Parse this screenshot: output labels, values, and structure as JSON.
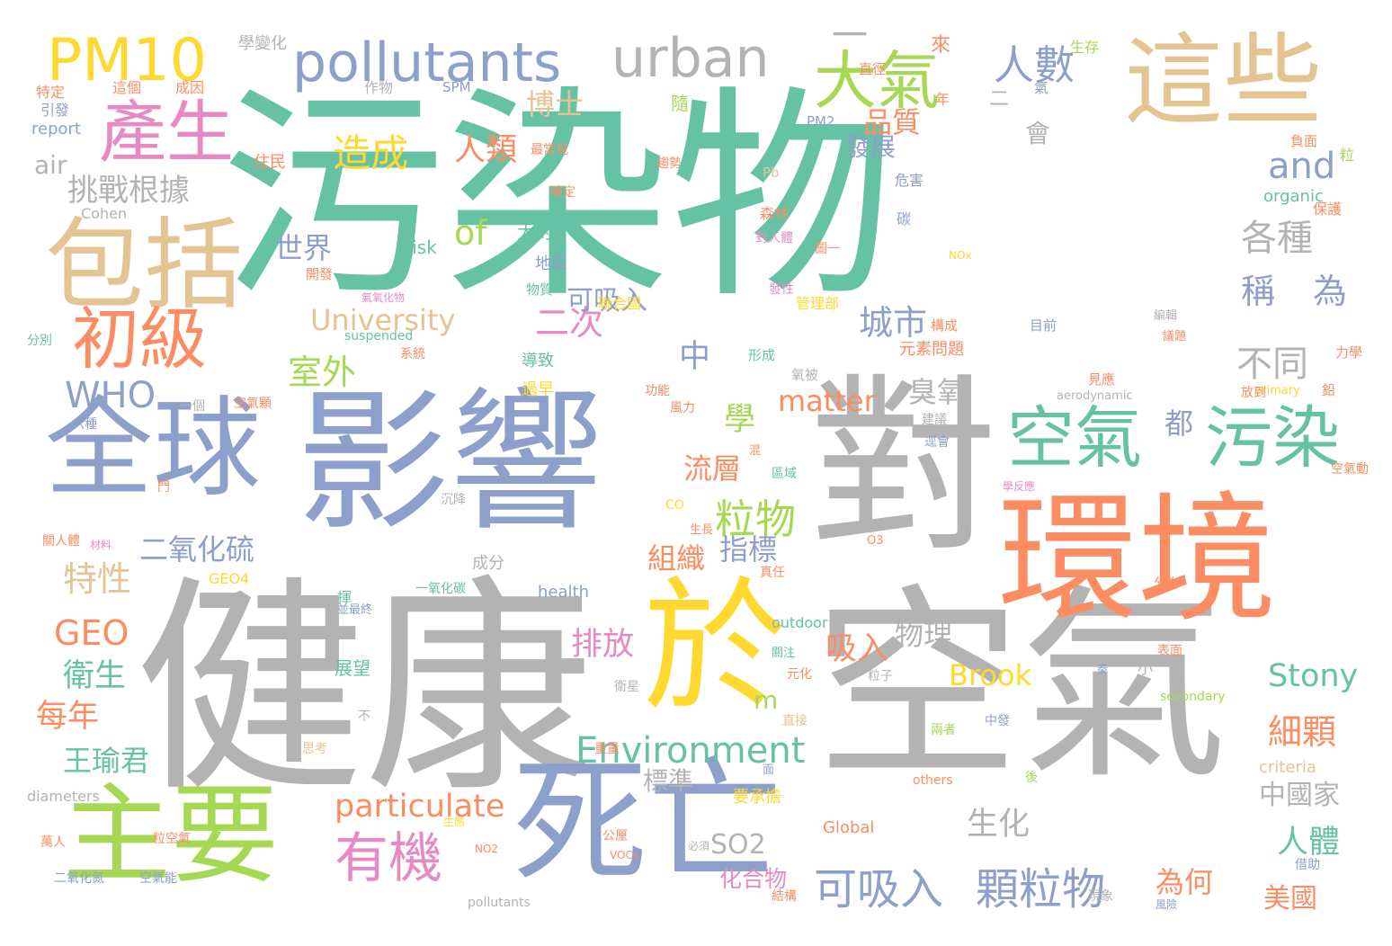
{
  "palette": {
    "teal": "#66c2a5",
    "orange": "#fc8d62",
    "blue": "#8da0cb",
    "pink": "#e78ac3",
    "green": "#a6d854",
    "yellow": "#ffd92f",
    "tan": "#e5c494",
    "gray": "#b3b3b3"
  },
  "words": [
    "污染物",
    "健康",
    "空氣",
    "影響",
    "對",
    "環境",
    "全球",
    "於",
    "主要",
    "死亡",
    "這些",
    "包括",
    "PM10",
    "pollutants",
    "urban",
    "大氣",
    "產生",
    "初級",
    "人數",
    "空氣",
    "污染",
    "WHO",
    "有機",
    "粒物",
    "可吸入",
    "顆粒物",
    "particulate",
    "Environment",
    "二氧化硫",
    "室外",
    "城市",
    "各種",
    "稱",
    "為",
    "不同",
    "中",
    "造成",
    "人類",
    "博士",
    "品質",
    "and",
    "of",
    "世界",
    "University",
    "二次",
    "挑戰根據",
    "air",
    "特性",
    "GEO",
    "衛生",
    "每年",
    "王瑜君",
    "排放",
    "吸入",
    "物理",
    "Brook",
    "Stony",
    "細顆",
    "matter",
    "臭氧",
    "學",
    "都",
    "流層",
    "指標",
    "組織",
    "標準",
    "中國家",
    "生化",
    "SO2",
    "人體",
    "為何",
    "美國",
    "可吸入",
    "化合物",
    "m",
    "一",
    "會",
    "發展",
    "二",
    "來",
    "生存",
    "學變化",
    "特定",
    "引發",
    "report",
    "Cohen",
    "這個",
    "成因",
    "作物",
    "SPM",
    "PM2",
    "氣",
    "負面",
    "粒",
    "organic",
    "保護",
    "危害",
    "碳",
    "Pb",
    "risk",
    "NOx",
    "大約",
    "地區",
    "開發",
    "物質",
    "聯合國",
    "管理部",
    "森林",
    "氣氧化物",
    "suspended",
    "系統",
    "導致",
    "過早",
    "元素問題",
    "形成",
    "構成",
    "目前",
    "編輯",
    "議題",
    "力學",
    "分別",
    "功能",
    "primary",
    "鉛",
    "一個",
    "風力",
    "六種",
    "空氣顆",
    "區域",
    "門",
    "混",
    "沉降",
    "CO",
    "GEO4",
    "成分",
    "一氧化碳",
    "揮",
    "O3",
    "分為",
    "health",
    "outdoor",
    "展望",
    "關注",
    "表面",
    "元化",
    "粒子",
    "秦",
    "衛星",
    "不",
    "小",
    "secondary",
    "直接",
    "中發",
    "兩者",
    "思考",
    "重量",
    "面",
    "criteria",
    "others",
    "diameters",
    "萬人",
    "二氧化氮",
    "粒空氣",
    "空氣能",
    "生態",
    "NO2",
    "公厘",
    "必須",
    "後",
    "要承擔",
    "Global",
    "VOCs",
    "借助",
    "結構",
    "現象",
    "風險",
    "pollutants",
    "直徑",
    "趨勢",
    "確定",
    "最常見",
    "住民",
    "對人體",
    "隨",
    "發性",
    "年",
    "圖一",
    "空氣動",
    "學反應",
    "aerodynamic",
    "建議",
    "逕會",
    "放到",
    "見應",
    "生長",
    "真任",
    "並最終",
    "關人體",
    "材料",
    "氧被",
    "發"
  ],
  "caption": ""
}
